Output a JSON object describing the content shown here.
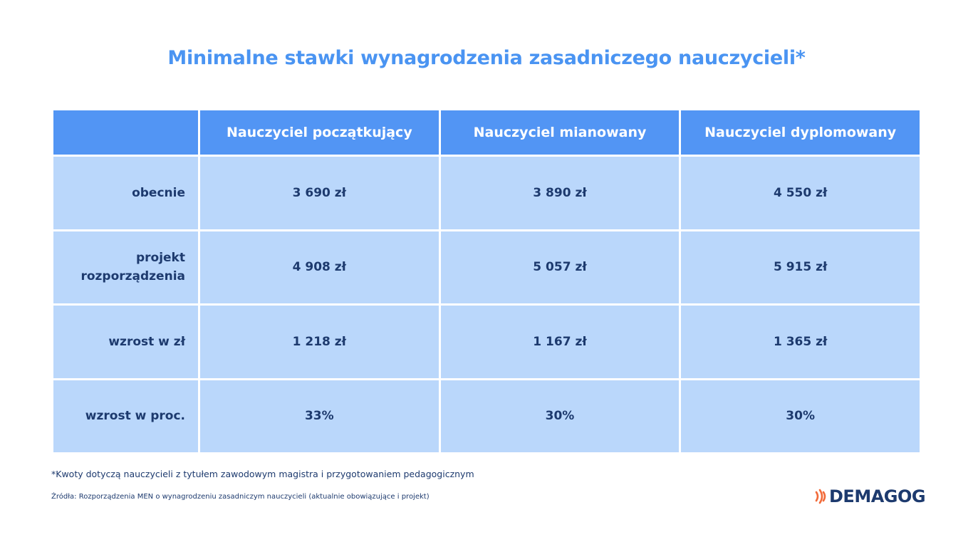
{
  "title": "Minimalne stawki wynagrodzenia zasadniczego nauczycieli*",
  "chart_data": {
    "type": "table",
    "title": "Minimalne stawki wynagrodzenia zasadniczego nauczycieli*",
    "columns": [
      "",
      "Nauczyciel początkujący",
      "Nauczyciel mianowany",
      "Nauczyciel dyplomowany"
    ],
    "rows": [
      {
        "label": "obecnie",
        "values": [
          "3 690 zł",
          "3 890 zł",
          "4 550 zł"
        ]
      },
      {
        "label": "projekt rozporządzenia",
        "label_lines": [
          "projekt",
          "rozporządzenia"
        ],
        "values": [
          "4 908 zł",
          "5 057 zł",
          "5 915 zł"
        ]
      },
      {
        "label": "wzrost w zł",
        "values": [
          "1 218 zł",
          "1 167 zł",
          "1 365 zł"
        ]
      },
      {
        "label": "wzrost w proc.",
        "values": [
          "33%",
          "30%",
          "30%"
        ]
      }
    ]
  },
  "footnote": "*Kwoty dotyczą nauczycieli z tytułem zawodowym magistra i przygotowaniem pedagogicznym",
  "source": "Źródła: Rozporządzenia MEN o wynagrodzeniu zasadniczym nauczycieli (aktualnie obowiązujące i projekt)",
  "logo": {
    "text": "DEMAGOG",
    "icon": "sound-waves-icon",
    "wave_color": "#f26b3a"
  },
  "colors": {
    "title": "#4a94f2",
    "header_bg": "#5295f4",
    "cell_bg": "#bad7fb",
    "text_dark": "#1d3a6e"
  }
}
